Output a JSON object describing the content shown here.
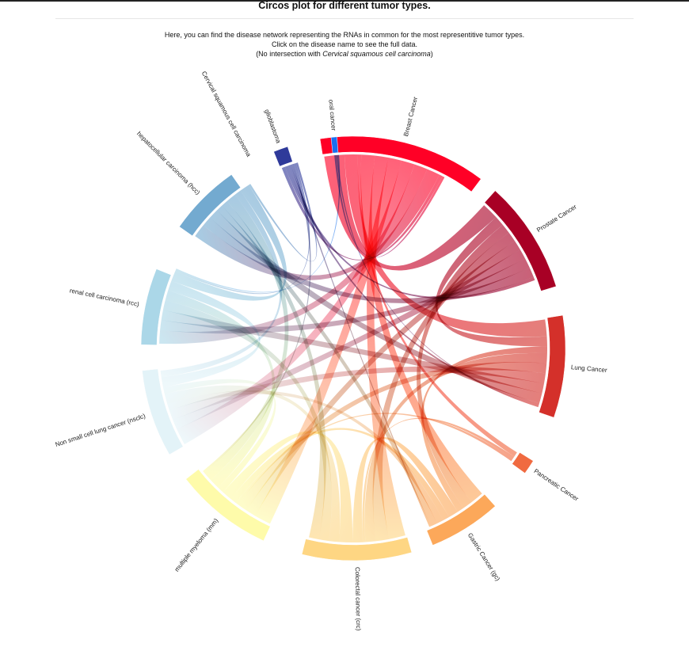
{
  "page": {
    "title": "Circos plot for different tumor types.",
    "intro_line1": "Here, you can find the disease network representing the RNAs in common for the most representitive tumor types.",
    "intro_line2": "Click on the disease name to see the full data.",
    "intro_line3_pre": "(No intersection with ",
    "intro_line3_em": "Cervical squamous cell carcinoma",
    "intro_line3_post": ")"
  },
  "diagram": {
    "type": "chord",
    "groups": [
      {
        "name": "Breast Cancer",
        "color": "#ff0026",
        "start": -9,
        "end": 37
      },
      {
        "name": "Prostate Cancer",
        "color": "#a80025",
        "start": 42,
        "end": 73
      },
      {
        "name": "Lung Cancer",
        "color": "#d4302a",
        "start": 81,
        "end": 109
      },
      {
        "name": "Pancreatic Cancer",
        "color": "#f06a40",
        "start": 122,
        "end": 126
      },
      {
        "name": "Gastric Cancer (gc)",
        "color": "#fca85a",
        "start": 138,
        "end": 158
      },
      {
        "name": "Colorectal cancer (crc)",
        "color": "#fed683",
        "start": 164,
        "end": 194
      },
      {
        "name": "multiple myeloma (mm)",
        "color": "#fefbaa",
        "start": 205,
        "end": 232
      },
      {
        "name": "Non small cell lung cancer (nsclc)",
        "color": "#e3f3f8",
        "start": 240,
        "end": 264
      },
      {
        "name": "renal cell carcinoma (rcc)",
        "color": "#abd7e8",
        "start": 271,
        "end": 292
      },
      {
        "name": "hepatocellular carcinoma (hcc)",
        "color": "#73aad0",
        "start": 305,
        "end": 325
      },
      {
        "name": "Cervical squamous cell carcinoma",
        "color": "#3a5fbf",
        "start": 0,
        "end": 0
      },
      {
        "name": "glioblastoma",
        "color": "#2f3a9a",
        "start": 338,
        "end": 342
      },
      {
        "name": "oral cancer",
        "color": "#1a6ff0",
        "start": 354,
        "end": 355.6
      }
    ],
    "chords": [
      [
        0,
        1,
        6,
        5
      ],
      [
        0,
        2,
        4,
        5
      ],
      [
        0,
        3,
        1,
        1.5
      ],
      [
        0,
        4,
        4,
        4
      ],
      [
        0,
        5,
        4,
        5
      ],
      [
        0,
        6,
        4,
        5
      ],
      [
        0,
        7,
        4,
        5
      ],
      [
        0,
        8,
        4,
        4
      ],
      [
        0,
        9,
        4,
        4
      ],
      [
        0,
        11,
        1,
        1
      ],
      [
        0,
        12,
        0.7,
        0.6
      ],
      [
        1,
        2,
        3,
        3
      ],
      [
        1,
        4,
        3,
        3
      ],
      [
        1,
        5,
        3,
        4
      ],
      [
        1,
        6,
        3,
        3
      ],
      [
        1,
        7,
        3,
        3
      ],
      [
        1,
        8,
        3,
        3
      ],
      [
        1,
        9,
        3,
        3
      ],
      [
        1,
        11,
        1,
        1
      ],
      [
        2,
        4,
        2,
        2
      ],
      [
        2,
        5,
        3,
        3
      ],
      [
        2,
        6,
        3,
        3
      ],
      [
        2,
        7,
        3,
        3
      ],
      [
        2,
        8,
        3,
        3
      ],
      [
        2,
        9,
        3,
        3
      ],
      [
        2,
        11,
        0.8,
        0.8
      ],
      [
        2,
        12,
        0.4,
        0.4
      ],
      [
        3,
        5,
        0.8,
        0.8
      ],
      [
        3,
        6,
        0.8,
        0.8
      ],
      [
        4,
        5,
        3,
        3
      ],
      [
        4,
        6,
        2,
        2
      ],
      [
        4,
        7,
        2,
        2
      ],
      [
        4,
        9,
        2,
        2
      ],
      [
        4,
        11,
        0.5,
        0.5
      ],
      [
        5,
        6,
        4,
        3
      ],
      [
        5,
        7,
        3,
        3
      ],
      [
        5,
        8,
        3,
        3
      ],
      [
        5,
        9,
        3,
        2
      ],
      [
        6,
        7,
        2,
        2
      ],
      [
        6,
        8,
        3,
        3
      ],
      [
        6,
        9,
        3,
        3
      ],
      [
        6,
        11,
        0.6,
        0.6
      ],
      [
        7,
        8,
        3,
        3
      ],
      [
        7,
        9,
        2,
        2
      ],
      [
        8,
        9,
        3,
        3
      ],
      [
        8,
        11,
        0.5,
        0.5
      ],
      [
        8,
        12,
        0.4,
        0.4
      ],
      [
        9,
        11,
        0.6,
        0.6
      ]
    ]
  }
}
